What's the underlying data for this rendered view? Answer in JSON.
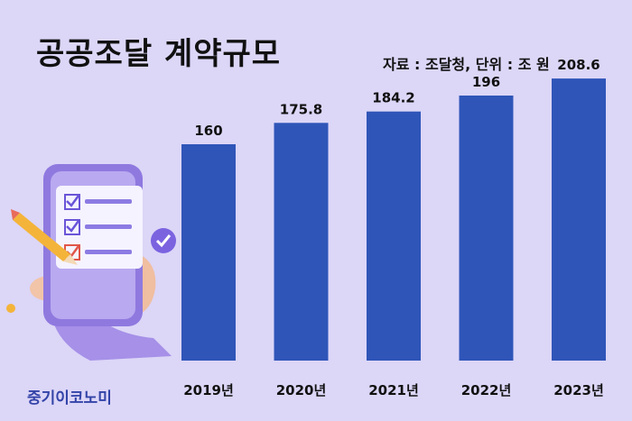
{
  "header": {
    "title": "공공조달 계약규모",
    "source_note": "자료 : 조달청, 단위 : 조 원"
  },
  "brand": {
    "logo_text": "중기이코노미"
  },
  "colors": {
    "bar": "#2f55b8",
    "background": "#dcd6f7",
    "accent_check": "#7b63e0"
  },
  "chart_data": {
    "type": "bar",
    "title": "공공조달 계약규모",
    "unit_note": "자료 : 조달청, 단위 : 조 원",
    "categories": [
      "2019년",
      "2020년",
      "2021년",
      "2022년",
      "2023년"
    ],
    "values": [
      160,
      175.8,
      184.2,
      196,
      208.6
    ],
    "value_labels": [
      "160",
      "175.8",
      "184.2",
      "196",
      "208.6"
    ],
    "ylim": [
      0,
      240
    ],
    "grid": false,
    "legend": "none"
  },
  "illustration": {
    "icons": [
      "phone-icon",
      "checklist-icon",
      "pencil-icon",
      "check-circle-icon",
      "hand-icon"
    ]
  }
}
